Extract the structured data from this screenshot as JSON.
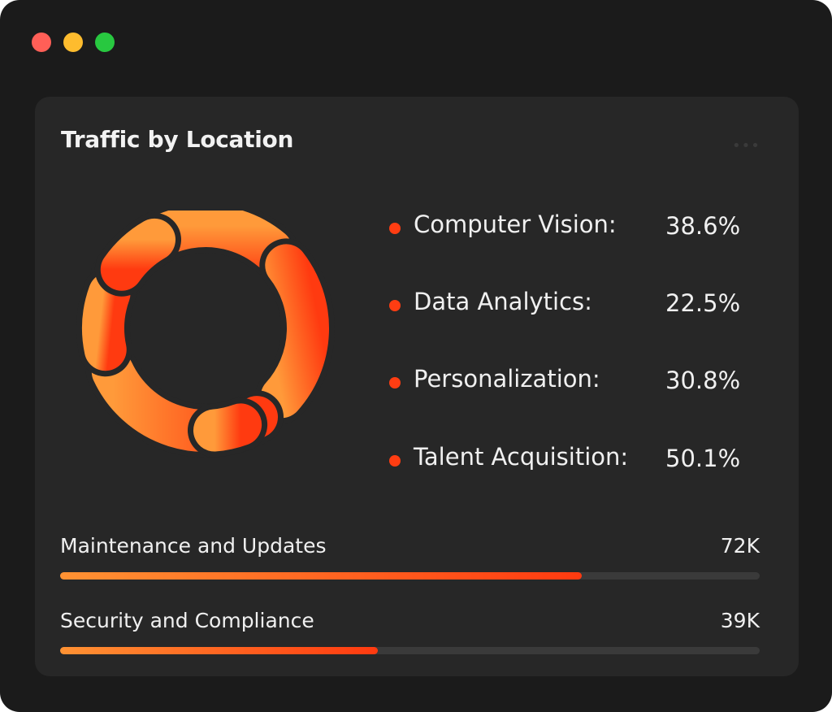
{
  "window": {
    "controls": [
      {
        "name": "close",
        "color": "#ff5f57"
      },
      {
        "name": "minimize",
        "color": "#febc2e"
      },
      {
        "name": "maximize",
        "color": "#28c840"
      }
    ]
  },
  "card": {
    "title": "Traffic by Location",
    "more_icon": "ellipsis-icon",
    "legend": [
      {
        "label": "Computer Vision:",
        "value": "38.6%"
      },
      {
        "label": "Data Analytics:",
        "value": "22.5%"
      },
      {
        "label": "Personalization:",
        "value": "30.8%"
      },
      {
        "label": "Talent Acquisition:",
        "value": "50.1%"
      }
    ],
    "bars": [
      {
        "label": "Maintenance and Updates",
        "value": "72K",
        "progress": 74.6
      },
      {
        "label": "Security and Compliance",
        "value": "39K",
        "progress": 45.4
      }
    ]
  },
  "colors": {
    "accent_start": "#ff9a3a",
    "accent_end": "#ff3a10",
    "card_bg": "#272727",
    "window_bg": "#1b1b1b"
  }
}
